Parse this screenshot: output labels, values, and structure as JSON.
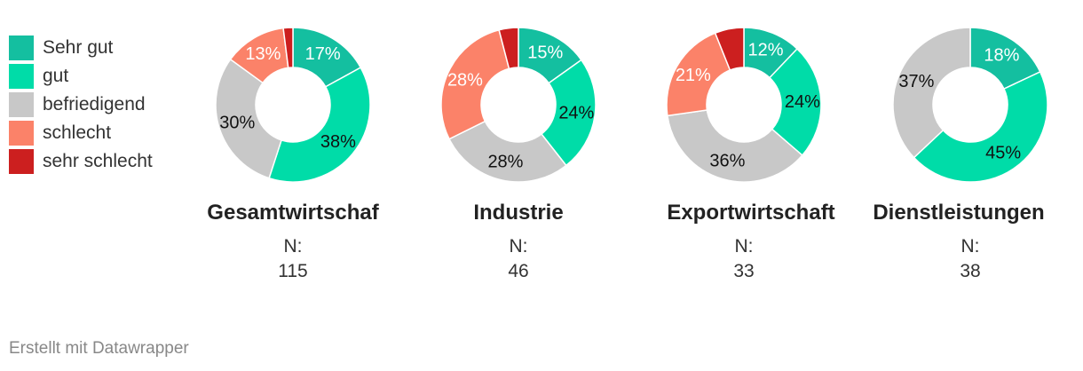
{
  "legend": [
    {
      "label": "Sehr gut",
      "color": "#14bfa0"
    },
    {
      "label": "gut",
      "color": "#00dca8"
    },
    {
      "label": "befriedigend",
      "color": "#c8c8c8"
    },
    {
      "label": "schlecht",
      "color": "#fb8269"
    },
    {
      "label": "sehr schlecht",
      "color": "#cc1f1f"
    }
  ],
  "chart_data": [
    {
      "type": "pie",
      "title": "Gesamtwirtschaf",
      "n_label": "N:",
      "n_value": "115",
      "categories": [
        "Sehr gut",
        "gut",
        "befriedigend",
        "schlecht",
        "sehr schlecht"
      ],
      "values": [
        17,
        38,
        30,
        13,
        2
      ],
      "data_labels": [
        "17%",
        "38%",
        "30%",
        "13%",
        ""
      ]
    },
    {
      "type": "pie",
      "title": "Industrie",
      "n_label": "N:",
      "n_value": "46",
      "categories": [
        "Sehr gut",
        "gut",
        "befriedigend",
        "schlecht",
        "sehr schlecht"
      ],
      "values": [
        15,
        24,
        28,
        28,
        4
      ],
      "data_labels": [
        "15%",
        "24%",
        "28%",
        "28%",
        ""
      ]
    },
    {
      "type": "pie",
      "title": "Exportwirtschaft",
      "n_label": "N:",
      "n_value": "33",
      "categories": [
        "Sehr gut",
        "gut",
        "befriedigend",
        "schlecht",
        "sehr schlecht"
      ],
      "values": [
        12,
        24,
        36,
        21,
        6
      ],
      "data_labels": [
        "12%",
        "24%",
        "36%",
        "21%",
        ""
      ]
    },
    {
      "type": "pie",
      "title": "Dienstleistungen",
      "n_label": "N:",
      "n_value": "38",
      "categories": [
        "Sehr gut",
        "gut",
        "befriedigend",
        "schlecht",
        "sehr schlecht"
      ],
      "values": [
        18,
        45,
        37,
        0,
        0
      ],
      "data_labels": [
        "18%",
        "45%",
        "37%",
        "",
        ""
      ]
    }
  ],
  "footer": {
    "text": "Erstellt mit Datawrapper"
  }
}
